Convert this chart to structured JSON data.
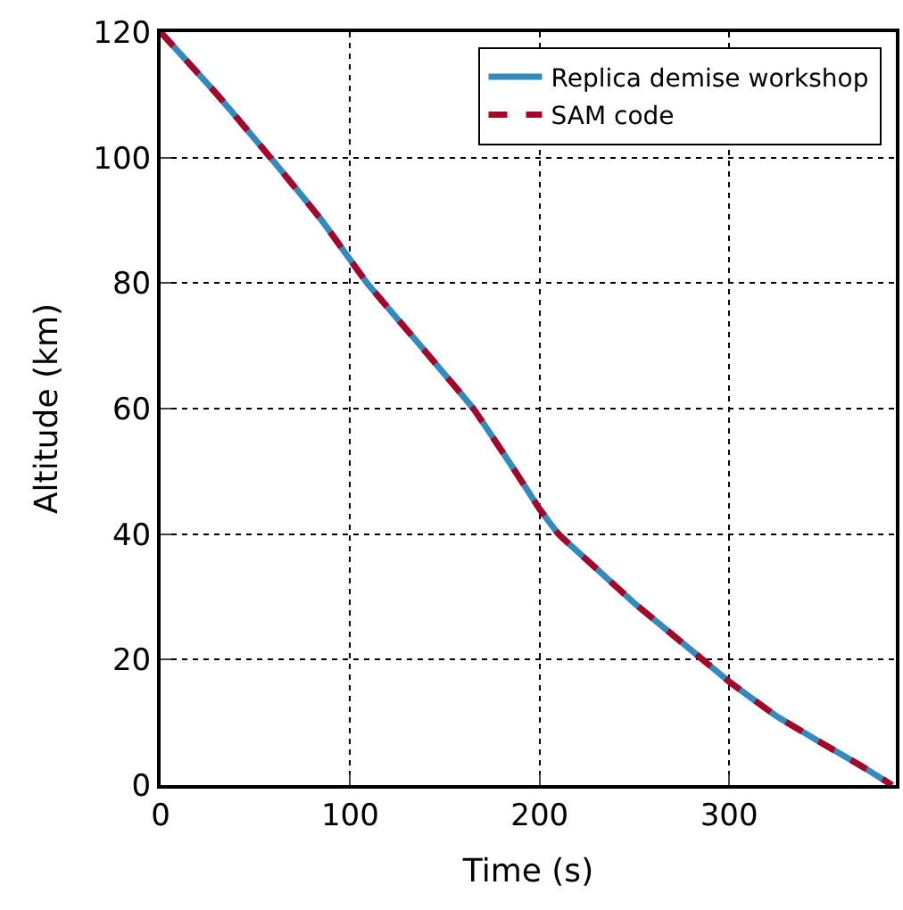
{
  "chart_data": {
    "type": "line",
    "xlabel": "Time (s)",
    "ylabel": "Altitude (km)",
    "x": [
      0,
      30,
      58,
      85,
      109,
      140,
      165,
      185,
      200,
      210,
      230,
      250,
      270,
      284,
      300,
      325,
      350,
      370,
      386
    ],
    "series": [
      {
        "name": "Replica demise workshop",
        "color": "#348abd",
        "line_style": "solid",
        "values": [
          120,
          110,
          100,
          90,
          80,
          69,
          60,
          51,
          44,
          40,
          34.5,
          29,
          24,
          20.5,
          16.5,
          11,
          6.5,
          3,
          0
        ]
      },
      {
        "name": "SAM code",
        "color": "#a60628",
        "line_style": "dashed",
        "values": [
          120,
          110,
          100,
          90,
          80,
          69,
          60,
          51,
          44,
          40,
          34.5,
          29,
          24,
          20.5,
          16.5,
          11,
          6.5,
          3,
          0
        ]
      }
    ],
    "xlim": [
      0,
      388
    ],
    "xticks": [
      0,
      100,
      200,
      300
    ],
    "ylim": [
      0,
      120
    ],
    "yticks": [
      0,
      20,
      40,
      60,
      80,
      100,
      120
    ],
    "grid": true,
    "legend": "top right",
    "marker": "none"
  }
}
